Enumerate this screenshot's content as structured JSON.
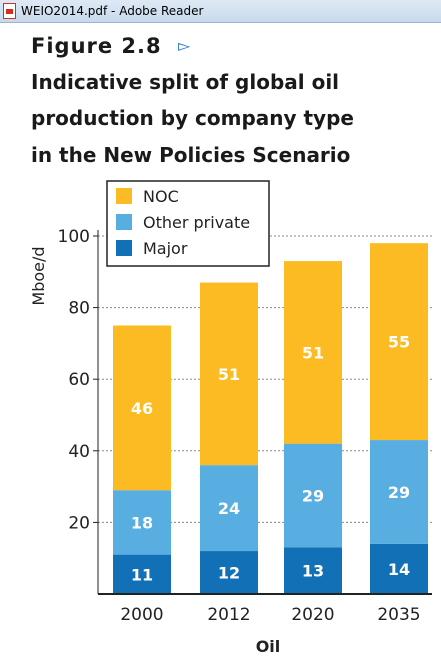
{
  "window": {
    "title": "WEIO2014.pdf - Adobe Reader",
    "icon": "pdf-file-icon"
  },
  "figure": {
    "number": "Figure 2.8",
    "link_icon": "triangle-right-icon",
    "title_lines": [
      "Indicative split of global oil",
      "production by company type",
      "in the New Policies Scenario"
    ]
  },
  "colors": {
    "noc": "#fcbb23",
    "other_private": "#58ade1",
    "major": "#1271b6"
  },
  "chart_data": {
    "type": "bar",
    "stacked": true,
    "categories": [
      "2000",
      "2012",
      "2020",
      "2035"
    ],
    "series": [
      {
        "name": "Major",
        "values": [
          11,
          12,
          13,
          14
        ],
        "color": "#1271b6"
      },
      {
        "name": "Other private",
        "values": [
          18,
          24,
          29,
          29
        ],
        "color": "#58ade1"
      },
      {
        "name": "NOC",
        "values": [
          46,
          51,
          51,
          55
        ],
        "color": "#fcbb23"
      }
    ],
    "xlabel": "Oil",
    "ylabel": "Mboe/d",
    "ylim": [
      0,
      100
    ],
    "yticks": [
      20,
      40,
      60,
      80,
      100
    ],
    "grid": true,
    "legend": {
      "position": "top-left",
      "order": [
        "NOC",
        "Other private",
        "Major"
      ]
    }
  }
}
